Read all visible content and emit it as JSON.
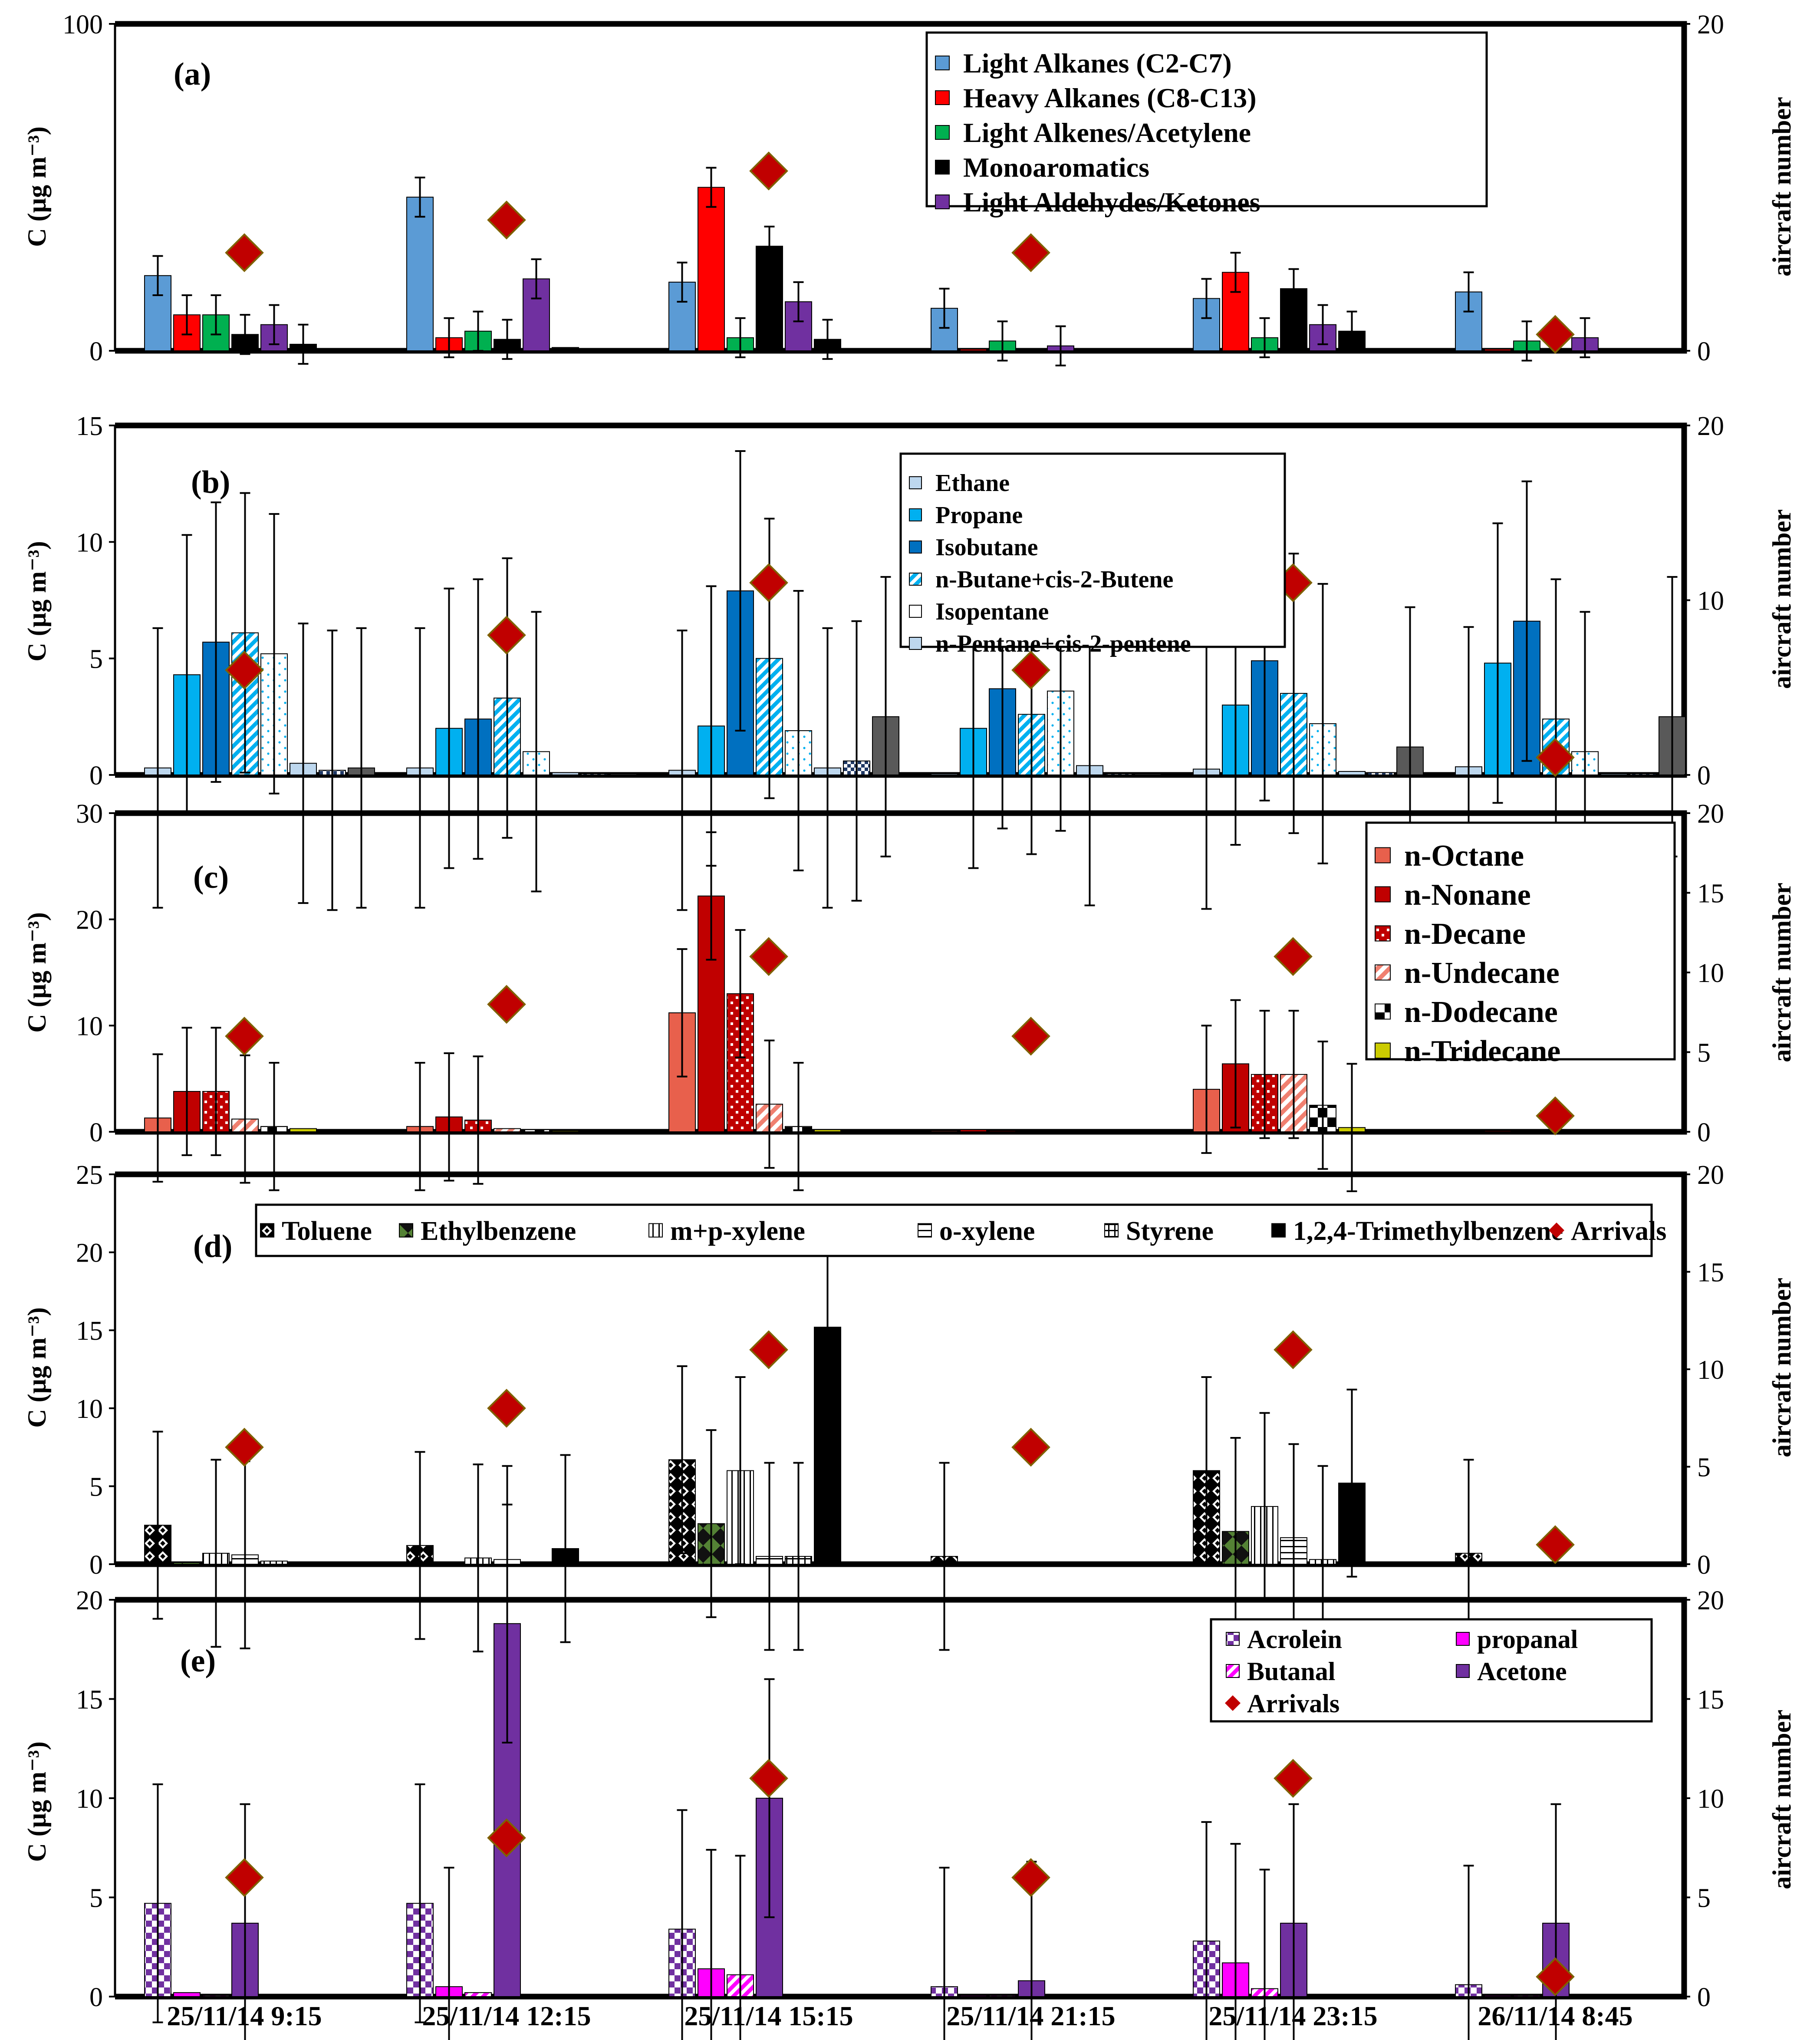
{
  "figure": {
    "x_categories": [
      "25/11/14 9:15",
      "25/11/14 12:15",
      "25/11/14 15:15",
      "25/11/14 21:15",
      "25/11/14 23:15",
      "26/11/14 8:45"
    ],
    "arrivals": [
      6,
      8,
      11,
      6,
      11,
      1
    ],
    "arrivals_color": "#C00000"
  },
  "chart_data": [
    {
      "type": "bar",
      "panel": "(a)",
      "ylabel": "C (µg m⁻³)",
      "y2label": "aircraft number",
      "ylim": [
        0,
        100
      ],
      "yticks": [
        0,
        100
      ],
      "y2lim": [
        0,
        20
      ],
      "y2ticks": [
        0,
        20
      ],
      "series": [
        {
          "name": "Light Alkanes (C2-C7)",
          "color": "#5B9BD5",
          "values": [
            23,
            47,
            21,
            13,
            16,
            18
          ]
        },
        {
          "name": "Heavy Alkanes (C8-C13)",
          "color": "#FF0000",
          "values": [
            11,
            4,
            50,
            0.5,
            24,
            0.5
          ]
        },
        {
          "name": "Light Alkenes/Acetylene",
          "color": "#00B050",
          "values": [
            11,
            6,
            4,
            3,
            4,
            3
          ]
        },
        {
          "name": "Monoaromatics",
          "color": "#000000",
          "values": [
            5,
            3.5,
            32,
            0.5,
            19,
            0.5
          ]
        },
        {
          "name": "Light Aldehydes/Ketones",
          "color": "#7030A0",
          "values": [
            8,
            22,
            15,
            1.5,
            8,
            4
          ]
        },
        {
          "name": "",
          "color": "#000000",
          "values": [
            2,
            1,
            3.5,
            0.5,
            6,
            0.5
          ],
          "legend": false
        }
      ],
      "arrivals": [
        6,
        8,
        11,
        6,
        11,
        1
      ]
    },
    {
      "type": "bar",
      "panel": "(b)",
      "ylabel": "C (µg m⁻³)",
      "y2label": "aircraft number",
      "ylim": [
        0,
        15
      ],
      "yticks": [
        0,
        5,
        10,
        15
      ],
      "y2lim": [
        0,
        20
      ],
      "y2ticks": [
        0,
        10,
        20
      ],
      "series": [
        {
          "name": "Ethane",
          "color": "#BDD7EE",
          "values": [
            0.3,
            0.3,
            0.2,
            0.05,
            0.25,
            0.35
          ]
        },
        {
          "name": "Propane",
          "color": "#00B0F0",
          "values": [
            4.3,
            2.0,
            2.1,
            2.0,
            3.0,
            4.8
          ]
        },
        {
          "name": "Isobutane",
          "color": "#0070C0",
          "values": [
            5.7,
            2.4,
            7.9,
            3.7,
            4.9,
            6.6
          ]
        },
        {
          "name": "n-Butane+cis-2-Butene",
          "color": "#00B0F0",
          "values": [
            6.1,
            3.3,
            5.0,
            2.6,
            3.5,
            2.4
          ]
        },
        {
          "name": "Isopentane",
          "color": "#FFFFFF",
          "values": [
            5.2,
            1.0,
            1.9,
            3.6,
            2.2,
            1.0
          ]
        },
        {
          "name": "n-Pentane+cis-2-pentene",
          "color": "#BDD7EE",
          "values": [
            0.5,
            0.1,
            0.3,
            0.4,
            0.15,
            0.05
          ]
        },
        {
          "name": "",
          "color": "#1F3864",
          "values": [
            0.2,
            0.05,
            0.6,
            0.05,
            0.1,
            0.05
          ],
          "legend": false
        },
        {
          "name": "",
          "color": "#595959",
          "values": [
            0.3,
            0.05,
            2.5,
            0.05,
            1.2,
            2.5
          ],
          "legend": false
        }
      ],
      "arrivals": [
        6,
        8,
        11,
        6,
        11,
        1
      ]
    },
    {
      "type": "bar",
      "panel": "(c)",
      "ylabel": "C (µg m⁻³)",
      "y2label": "aircraft number",
      "ylim": [
        0,
        30
      ],
      "yticks": [
        0,
        10,
        20,
        30
      ],
      "y2lim": [
        0,
        20
      ],
      "y2ticks": [
        0,
        5,
        10,
        15,
        20
      ],
      "series": [
        {
          "name": "n-Octane",
          "color": "#E8604C",
          "values": [
            1.3,
            0.5,
            11.2,
            0.1,
            4.0,
            0.05
          ]
        },
        {
          "name": "n-Nonane",
          "color": "#C00000",
          "values": [
            3.8,
            1.4,
            22.2,
            0.2,
            6.4,
            0.1
          ]
        },
        {
          "name": "n-Decane",
          "color": "#C00000",
          "values": [
            3.8,
            1.1,
            13.0,
            0.1,
            5.4,
            0.05
          ]
        },
        {
          "name": "n-Undecane",
          "color": "#F4A08C",
          "values": [
            1.2,
            0.3,
            2.6,
            0.05,
            5.4,
            0.05
          ]
        },
        {
          "name": "n-Dodecane",
          "color": "#000000",
          "values": [
            0.5,
            0.2,
            0.5,
            0.05,
            2.5,
            0.05
          ]
        },
        {
          "name": "n-Tridecane",
          "color": "#CCCC00",
          "values": [
            0.3,
            0.1,
            0.2,
            0.05,
            0.4,
            0.05
          ]
        }
      ],
      "arrivals": [
        6,
        8,
        11,
        6,
        11,
        1
      ]
    },
    {
      "type": "bar",
      "panel": "(d)",
      "ylabel": "C (µg m⁻³)",
      "y2label": "aircraft number",
      "ylim": [
        0,
        25
      ],
      "yticks": [
        0,
        5,
        10,
        15,
        20,
        25
      ],
      "y2lim": [
        0,
        20
      ],
      "y2ticks": [
        0,
        5,
        10,
        15,
        20
      ],
      "series": [
        {
          "name": "Toluene",
          "color": "#000000",
          "values": [
            2.5,
            1.2,
            6.7,
            0.5,
            6.0,
            0.7
          ]
        },
        {
          "name": "Ethylbenzene",
          "color": "#548235",
          "values": [
            0.1,
            0.05,
            2.6,
            0.05,
            2.1,
            0.05
          ]
        },
        {
          "name": "m+p-xylene",
          "color": "#FFFFFF",
          "values": [
            0.7,
            0.4,
            6.0,
            0.05,
            3.7,
            0.05
          ]
        },
        {
          "name": "o-xylene",
          "color": "#FFFFFF",
          "values": [
            0.6,
            0.3,
            0.5,
            0.05,
            1.7,
            0.05
          ]
        },
        {
          "name": "Styrene",
          "color": "#FFFFFF",
          "values": [
            0.2,
            0.05,
            0.5,
            0.05,
            0.3,
            0.05
          ]
        },
        {
          "name": "1,2,4-Trimethylbenzene",
          "color": "#000000",
          "values": [
            0.05,
            1.0,
            15.2,
            0.05,
            5.2,
            0.05
          ]
        }
      ],
      "arrivals": [
        6,
        8,
        11,
        6,
        11,
        1
      ],
      "legend_arrivals": "Arrivals"
    },
    {
      "type": "bar",
      "panel": "(e)",
      "ylabel": "C (µg m⁻³)",
      "y2label": "aircraft number",
      "ylim": [
        0,
        20
      ],
      "yticks": [
        0,
        5,
        10,
        15,
        20
      ],
      "y2lim": [
        0,
        20
      ],
      "y2ticks": [
        0,
        5,
        10,
        15,
        20
      ],
      "series": [
        {
          "name": "Acrolein",
          "color": "#7030A0",
          "values": [
            4.7,
            4.7,
            3.4,
            0.5,
            2.8,
            0.6
          ]
        },
        {
          "name": "propanal",
          "color": "#FF00FF",
          "values": [
            0.2,
            0.5,
            1.4,
            0.05,
            1.7,
            0.05
          ]
        },
        {
          "name": "Butanal",
          "color": "#FF00FF",
          "values": [
            0.05,
            0.2,
            1.1,
            0.05,
            0.4,
            0.05
          ]
        },
        {
          "name": "Acetone",
          "color": "#7030A0",
          "values": [
            3.7,
            18.8,
            10.0,
            0.8,
            3.7,
            3.7
          ]
        }
      ],
      "arrivals": [
        6,
        8,
        11,
        6,
        11,
        1
      ],
      "legend_arrivals": "Arrivals"
    }
  ]
}
